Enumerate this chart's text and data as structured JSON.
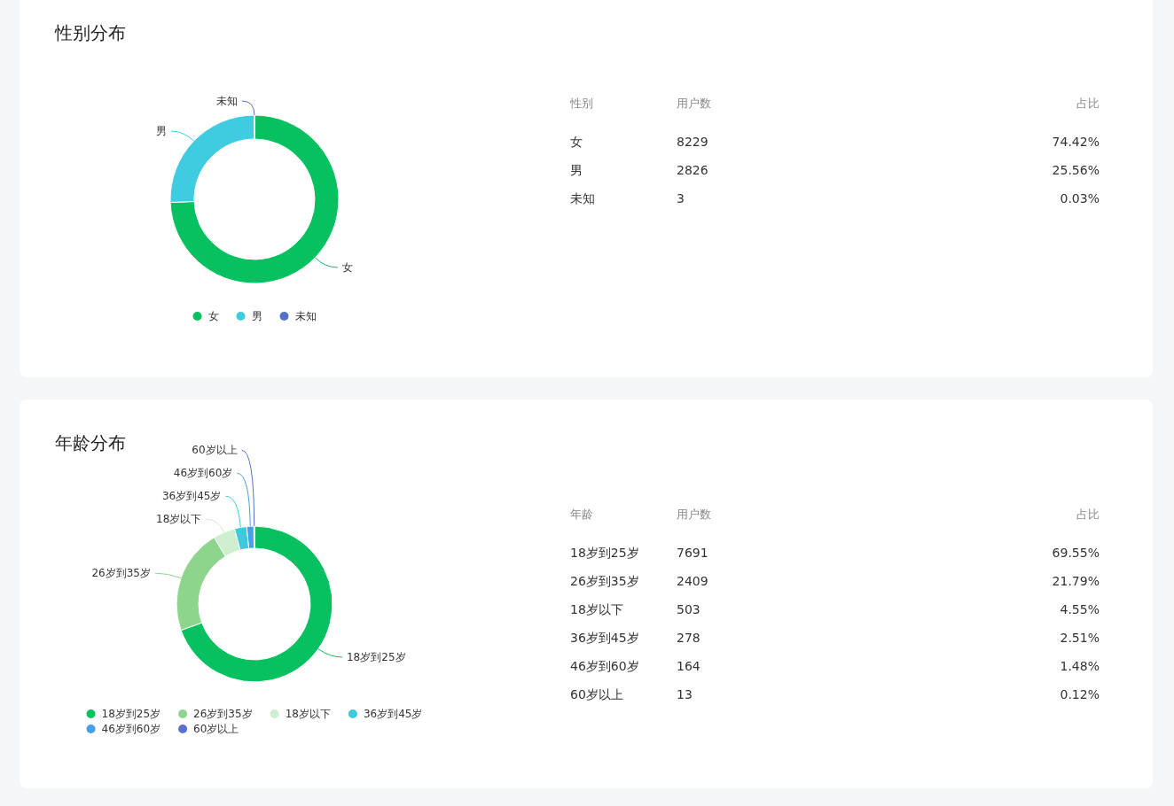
{
  "chart_data": [
    {
      "type": "donut",
      "title": "性别分布",
      "categories": [
        "女",
        "男",
        "未知"
      ],
      "values": [
        74.42,
        25.56,
        0.03
      ],
      "colors": [
        "#07c160",
        "#40cce0",
        "#5470c6"
      ],
      "legend": "bottom"
    },
    {
      "type": "other",
      "categories": [
        "女",
        "男",
        "未知"
      ],
      "values": [
        8229,
        2826,
        3
      ],
      "data_labels": true,
      "annotations": [
        "性别",
        "用户数",
        "占比",
        "74.42%",
        "25.56%",
        "0.03%"
      ]
    },
    {
      "type": "donut",
      "title": "年龄分布",
      "categories": [
        "18岁到25岁",
        "26岁到35岁",
        "18岁以下",
        "36岁到45岁",
        "46岁到60岁",
        "60岁以上"
      ],
      "values": [
        69.55,
        21.79,
        4.55,
        2.51,
        1.48,
        0.12
      ],
      "colors": [
        "#07c160",
        "#8dd58c",
        "#cdeecf",
        "#40c8dc",
        "#4a9ee8",
        "#5b6fd1"
      ],
      "legend": "bottom"
    },
    {
      "type": "other",
      "categories": [
        "18岁到25岁",
        "26岁到35岁",
        "18岁以下",
        "36岁到45岁",
        "46岁到60岁",
        "60岁以上"
      ],
      "values": [
        7691,
        2409,
        503,
        278,
        164,
        13
      ],
      "data_labels": true,
      "annotations": [
        "年龄",
        "用户数",
        "占比",
        "69.55%",
        "21.79%",
        "4.55%",
        "2.51%",
        "1.48%",
        "0.12%"
      ]
    }
  ]
}
